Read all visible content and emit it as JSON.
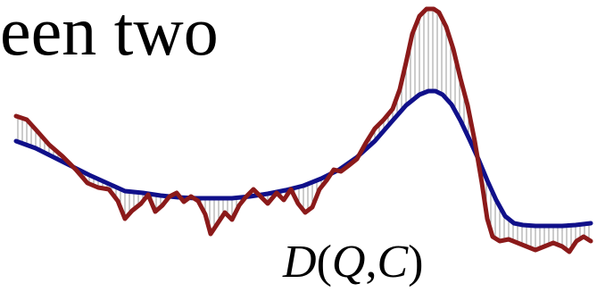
{
  "title_fragment": "een two",
  "distance_label": {
    "fn": "D",
    "open": "(",
    "q": "Q",
    "comma": ",",
    "c": "C",
    "close": ")"
  },
  "colors": {
    "series_q": "#8b1a1a",
    "series_c": "#10108a",
    "warp_lines": "#9a9a9a",
    "text": "#000000"
  }
}
